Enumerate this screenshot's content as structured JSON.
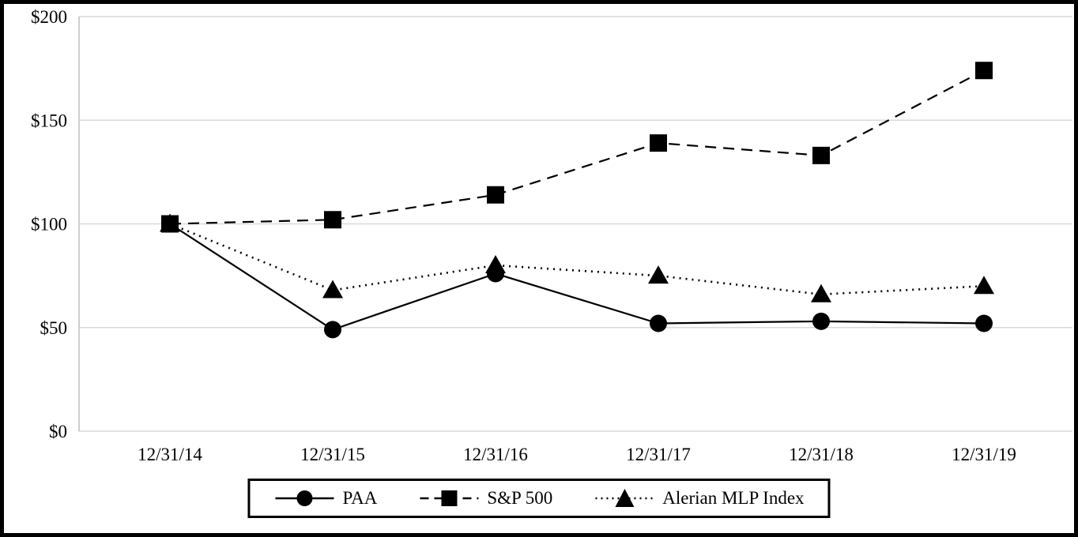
{
  "chart_data": {
    "type": "line",
    "title": "",
    "categories": [
      "12/31/14",
      "12/31/15",
      "12/31/16",
      "12/31/17",
      "12/31/18",
      "12/31/19"
    ],
    "series": [
      {
        "name": "PAA",
        "marker": "circle",
        "line": "solid",
        "values": [
          100,
          49,
          76,
          52,
          53,
          52
        ]
      },
      {
        "name": "S&P 500",
        "marker": "square",
        "line": "dashed",
        "values": [
          100,
          102,
          114,
          139,
          133,
          174
        ]
      },
      {
        "name": "Alerian MLP Index",
        "marker": "triangle",
        "line": "dotted",
        "values": [
          100,
          68,
          80,
          75,
          66,
          70
        ]
      }
    ],
    "y_ticks": [
      "$200",
      "$150",
      "$100",
      "$50",
      "$0"
    ],
    "y_tick_values": [
      200,
      150,
      100,
      50,
      0
    ],
    "ylim": [
      0,
      200
    ],
    "xlabel": "",
    "ylabel": "",
    "grid": true,
    "legend_position": "bottom",
    "colors": {
      "series": "#000000",
      "grid": "#d9d9d9",
      "axis": "#bfbfbf",
      "background": "#ffffff",
      "frame_border": "#000000"
    }
  }
}
